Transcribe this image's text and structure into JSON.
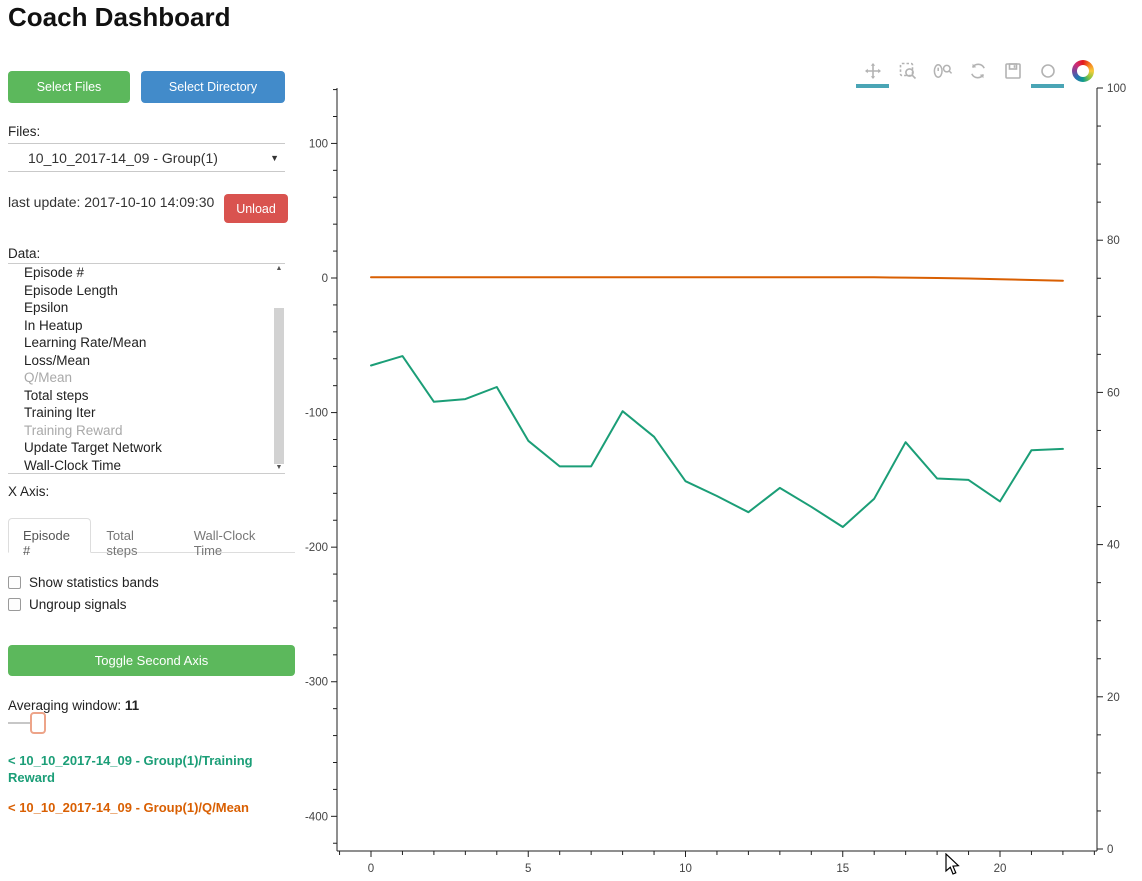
{
  "header": {
    "title": "Coach Dashboard"
  },
  "sidebar": {
    "select_files_label": "Select Files",
    "select_directory_label": "Select Directory",
    "files_label": "Files:",
    "file_select_value": "10_10_2017-14_09 - Group(1)",
    "last_update": "last update: 2017-10-10 14:09:30",
    "unload_label": "Unload",
    "data_label": "Data:",
    "data_items": [
      {
        "label": "Episode #",
        "dimmed": false
      },
      {
        "label": "Episode Length",
        "dimmed": false
      },
      {
        "label": "Epsilon",
        "dimmed": false
      },
      {
        "label": "In Heatup",
        "dimmed": false
      },
      {
        "label": "Learning Rate/Mean",
        "dimmed": false
      },
      {
        "label": "Loss/Mean",
        "dimmed": false
      },
      {
        "label": "Q/Mean",
        "dimmed": true
      },
      {
        "label": "Total steps",
        "dimmed": false
      },
      {
        "label": "Training Iter",
        "dimmed": false
      },
      {
        "label": "Training Reward",
        "dimmed": true
      },
      {
        "label": "Update Target Network",
        "dimmed": false
      },
      {
        "label": "Wall-Clock Time",
        "dimmed": false
      }
    ],
    "x_axis_label": "X Axis:",
    "x_axis_tabs": [
      {
        "label": "Episode #",
        "active": true
      },
      {
        "label": "Total steps",
        "active": false
      },
      {
        "label": "Wall-Clock Time",
        "active": false
      }
    ],
    "checkboxes": [
      {
        "label": "Show statistics bands",
        "checked": false
      },
      {
        "label": "Ungroup signals",
        "checked": false
      }
    ],
    "toggle_second_axis_label": "Toggle Second Axis",
    "averaging_window_label": "Averaging window:",
    "averaging_window_value": "11",
    "legend": [
      {
        "label": "< 10_10_2017-14_09 - Group(1)/Training Reward",
        "color": "#1b9e77"
      },
      {
        "label": "< 10_10_2017-14_09 - Group(1)/Q/Mean",
        "color": "#d95f02"
      }
    ]
  },
  "toolbar": {
    "tools": [
      {
        "name": "pan",
        "active": true
      },
      {
        "name": "box-zoom",
        "active": false
      },
      {
        "name": "wheel-zoom",
        "active": false
      },
      {
        "name": "reset",
        "active": false
      },
      {
        "name": "save",
        "active": false
      },
      {
        "name": "hover",
        "active": true
      }
    ],
    "active_color": "#4aa5b5"
  },
  "chart_data": {
    "type": "line",
    "title": "",
    "xlabel": "",
    "ylabel": "",
    "grid": false,
    "legend_position": "sidebar-bottom-left",
    "x": [
      0,
      1,
      2,
      3,
      4,
      5,
      6,
      7,
      8,
      9,
      10,
      11,
      12,
      13,
      14,
      15,
      16,
      17,
      18,
      19,
      20,
      21,
      22
    ],
    "series": [
      {
        "name": "10_10_2017-14_09 - Group(1)/Training Reward",
        "color": "#1b9e77",
        "axis": "left",
        "values": [
          -65,
          -58,
          -92,
          -90,
          -81,
          -121,
          -140,
          -140,
          -99,
          -118,
          -151,
          -162,
          -174,
          -156,
          -170,
          -185,
          -164,
          -122,
          -149,
          -150,
          -166,
          -128,
          -127
        ]
      },
      {
        "name": "10_10_2017-14_09 - Group(1)/Q/Mean",
        "color": "#d95f02",
        "axis": "left",
        "values": [
          0.5,
          0.5,
          0.5,
          0.5,
          0.5,
          0.5,
          0.5,
          0.5,
          0.5,
          0.5,
          0.5,
          0.5,
          0.5,
          0.5,
          0.5,
          0.5,
          0.5,
          0.3,
          0,
          -0.4,
          -0.9,
          -1.5,
          -2
        ]
      }
    ],
    "x_axis": {
      "ticks": [
        0,
        5,
        10,
        15,
        20
      ],
      "minor_step": 1,
      "range": [
        -1,
        23.1
      ]
    },
    "left_axis": {
      "ticks": [
        100,
        0,
        -100,
        -200,
        -300,
        -400
      ],
      "minor_step": 20,
      "range": [
        -427,
        141
      ]
    },
    "right_axis": {
      "ticks": [
        0,
        20,
        40,
        60,
        80,
        100
      ],
      "minor_step": 5,
      "range": [
        0,
        100
      ]
    }
  }
}
